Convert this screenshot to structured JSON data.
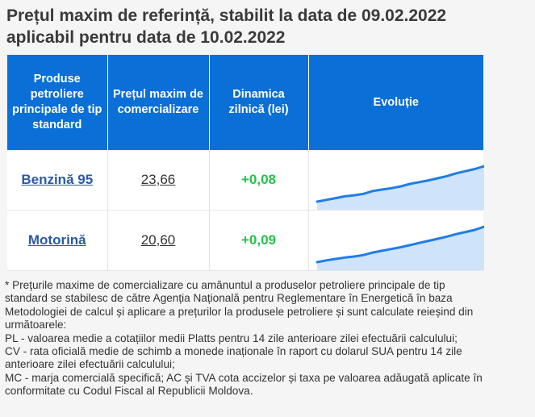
{
  "header": {
    "title_line1": "Prețul maxim de referință, stabilit la data de 09.02.2022",
    "title_line2": "aplicabil pentru data de 10.02.2022"
  },
  "table": {
    "columns": [
      "Produse petroliere principale de tip standard",
      "Prețul maxim de comercializare",
      "Dinamica zilnică (lei)",
      "Evoluție"
    ],
    "rows": [
      {
        "product": "Benzină 95",
        "price": "23,66",
        "change": "+0,08",
        "trend": [
          0.0,
          0.05,
          0.1,
          0.15,
          0.18,
          0.22,
          0.3,
          0.34,
          0.38,
          0.43,
          0.5,
          0.55,
          0.6,
          0.66,
          0.72,
          0.8,
          0.86,
          0.92,
          1.0
        ]
      },
      {
        "product": "Motorină",
        "price": "20,60",
        "change": "+0,09",
        "trend": [
          0.0,
          0.05,
          0.09,
          0.13,
          0.16,
          0.2,
          0.27,
          0.32,
          0.37,
          0.42,
          0.48,
          0.54,
          0.6,
          0.66,
          0.72,
          0.79,
          0.85,
          0.91,
          1.0
        ]
      }
    ],
    "colors": {
      "header_bg": "#0a6fd6",
      "spark_line": "#1f7de6",
      "spark_fill": "#cfe3fb",
      "positive": "#23c24a",
      "link": "#2a5aa5"
    }
  },
  "notes": [
    "* Prețurile maxime de comercializare cu amănuntul a produselor petroliere principale de tip standard se stabilesc de către Agenția Națională pentru Reglementare în Energetică în baza Metodologiei de calcul și aplicare a prețurilor la produsele petroliere și sunt calculate reieșind din următoarele:",
    "PL - valoarea medie a cotațiilor medii Platts pentru 14 zile anterioare zilei efectuării calculului;",
    "CV - rata oficială medie de schimb a monede inaționale în raport cu dolarul SUA pentru 14 zile anterioare zilei efectuării calculului;",
    "MC - marja comercială specifică; AC și TVA cota accizelor și taxa pe valoarea adăugată aplicate în conformitate cu Codul Fiscal al Republicii Moldova."
  ]
}
